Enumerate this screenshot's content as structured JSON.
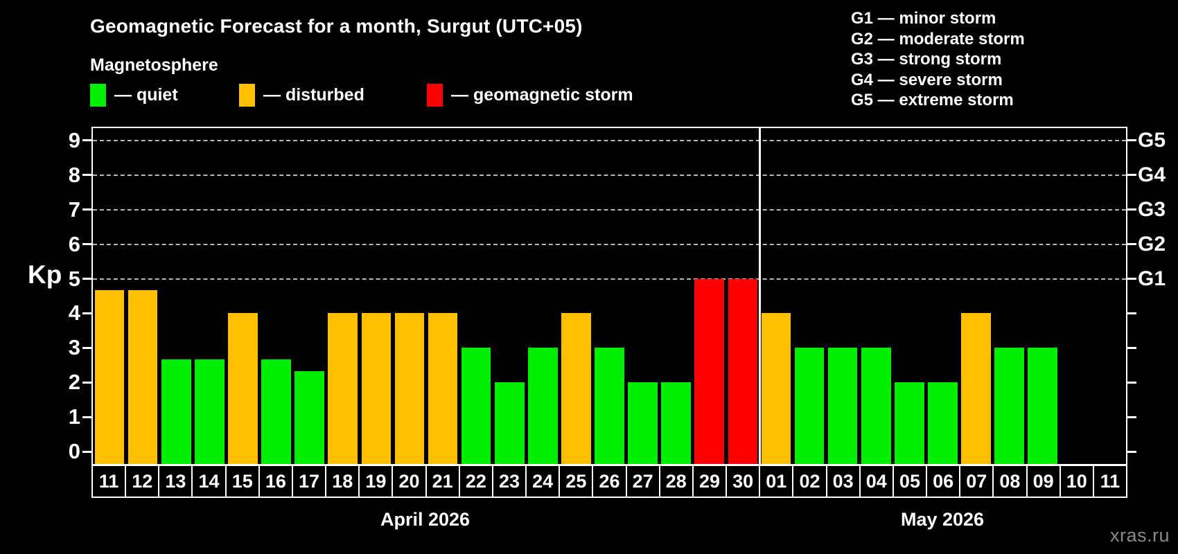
{
  "title": "Geomagnetic Forecast for a month, Surgut (UTC+05)",
  "subtitle": "Magnetosphere",
  "legend": [
    {
      "key": "quiet",
      "label": "— quiet",
      "color": "#00ee00"
    },
    {
      "key": "disturbed",
      "label": "— disturbed",
      "color": "#ffc000"
    },
    {
      "key": "storm",
      "label": "— geomagnetic storm",
      "color": "#ff0000"
    }
  ],
  "storm_scale_legend": [
    "G1 — minor storm",
    "G2 — moderate storm",
    "G3 — strong storm",
    "G4 — severe storm",
    "G5 — extreme storm"
  ],
  "watermark": "xras.ru",
  "chart_data": {
    "type": "bar",
    "title": "Geomagnetic Forecast for a month, Surgut (UTC+05)",
    "ylabel": "Kp",
    "ylim": [
      0,
      9
    ],
    "yticks": [
      0,
      1,
      2,
      3,
      4,
      5,
      6,
      7,
      8,
      9
    ],
    "gridlines_at": [
      5,
      6,
      7,
      8,
      9
    ],
    "grid": "dashed-horizontal",
    "legend_position": "top",
    "right_axis_labels": [
      {
        "kp": 5,
        "label": "G1"
      },
      {
        "kp": 6,
        "label": "G2"
      },
      {
        "kp": 7,
        "label": "G3"
      },
      {
        "kp": 8,
        "label": "G4"
      },
      {
        "kp": 9,
        "label": "G5"
      }
    ],
    "colors": {
      "quiet": "#00ee00",
      "disturbed": "#ffc000",
      "storm": "#ff0000"
    },
    "months": [
      {
        "label": "April 2026",
        "days": [
          {
            "day": "11",
            "kp": 4.67,
            "status": "disturbed"
          },
          {
            "day": "12",
            "kp": 4.67,
            "status": "disturbed"
          },
          {
            "day": "13",
            "kp": 2.67,
            "status": "quiet"
          },
          {
            "day": "14",
            "kp": 2.67,
            "status": "quiet"
          },
          {
            "day": "15",
            "kp": 4,
            "status": "disturbed"
          },
          {
            "day": "16",
            "kp": 2.67,
            "status": "quiet"
          },
          {
            "day": "17",
            "kp": 2.33,
            "status": "quiet"
          },
          {
            "day": "18",
            "kp": 4,
            "status": "disturbed"
          },
          {
            "day": "19",
            "kp": 4,
            "status": "disturbed"
          },
          {
            "day": "20",
            "kp": 4,
            "status": "disturbed"
          },
          {
            "day": "21",
            "kp": 4,
            "status": "disturbed"
          },
          {
            "day": "22",
            "kp": 3,
            "status": "quiet"
          },
          {
            "day": "23",
            "kp": 2,
            "status": "quiet"
          },
          {
            "day": "24",
            "kp": 3,
            "status": "quiet"
          },
          {
            "day": "25",
            "kp": 4,
            "status": "disturbed"
          },
          {
            "day": "26",
            "kp": 3,
            "status": "quiet"
          },
          {
            "day": "27",
            "kp": 2,
            "status": "quiet"
          },
          {
            "day": "28",
            "kp": 2,
            "status": "quiet"
          },
          {
            "day": "29",
            "kp": 5,
            "status": "storm"
          },
          {
            "day": "30",
            "kp": 5,
            "status": "storm"
          }
        ]
      },
      {
        "label": "May 2026",
        "days": [
          {
            "day": "01",
            "kp": 4,
            "status": "disturbed"
          },
          {
            "day": "02",
            "kp": 3,
            "status": "quiet"
          },
          {
            "day": "03",
            "kp": 3,
            "status": "quiet"
          },
          {
            "day": "04",
            "kp": 3,
            "status": "quiet"
          },
          {
            "day": "05",
            "kp": 2,
            "status": "quiet"
          },
          {
            "day": "06",
            "kp": 2,
            "status": "quiet"
          },
          {
            "day": "07",
            "kp": 4,
            "status": "disturbed"
          },
          {
            "day": "08",
            "kp": 3,
            "status": "quiet"
          },
          {
            "day": "09",
            "kp": 3,
            "status": "quiet"
          },
          {
            "day": "10",
            "kp": null,
            "status": "none"
          },
          {
            "day": "11",
            "kp": null,
            "status": "none"
          }
        ]
      }
    ]
  }
}
